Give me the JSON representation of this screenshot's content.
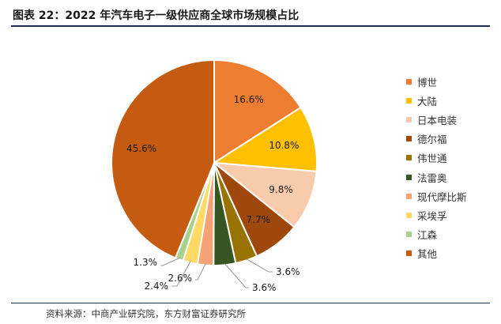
{
  "header": {
    "title": "图表 22：2022 年汽车电子一级供应商全球市场规模占比"
  },
  "footer": {
    "source": "资料来源：中商产业研究院，东方财富证券研究所"
  },
  "chart_data": {
    "type": "pie",
    "title": "",
    "legend_position": "right",
    "start_angle": "12 o'clock, clockwise",
    "categories": [
      "博世",
      "大陆",
      "日本电装",
      "德尔福",
      "伟世通",
      "法雷奥",
      "现代摩比斯",
      "采埃孚",
      "江森",
      "其他"
    ],
    "values": [
      16.6,
      10.8,
      9.8,
      7.7,
      3.6,
      3.6,
      2.6,
      2.4,
      1.3,
      45.6
    ],
    "data_labels": [
      "16.6%",
      "10.8%",
      "9.8%",
      "7.7%",
      "3.6%",
      "3.6%",
      "2.6%",
      "2.4%",
      "1.3%",
      "45.6%"
    ],
    "colors": [
      "#ED7D31",
      "#FFC000",
      "#F8CBAD",
      "#9E480E",
      "#997300",
      "#375623",
      "#F4A276",
      "#FFD966",
      "#A9D18E",
      "#C55A11"
    ]
  }
}
